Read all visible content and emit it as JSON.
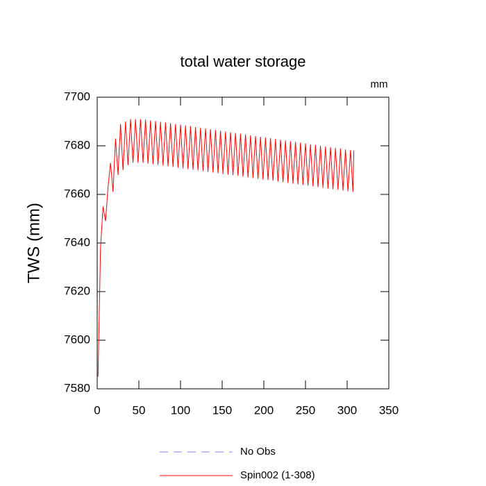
{
  "chart_data": {
    "type": "line",
    "title": "total water storage",
    "units": "mm",
    "y_label": "TWS  (mm)",
    "xlim": [
      0,
      350
    ],
    "xticks": [
      0,
      50,
      100,
      150,
      200,
      250,
      300,
      350
    ],
    "ylim": [
      7580,
      7700
    ],
    "yticks": [
      7580,
      7600,
      7620,
      7640,
      7660,
      7680,
      7700
    ],
    "series": [
      {
        "name": "No Obs",
        "color": "#8080ff",
        "dashed": true,
        "x": [],
        "values": []
      },
      {
        "name": "Spin002 (1-308)",
        "color": "#ff0000",
        "dashed": false,
        "x": [
          1,
          4,
          7,
          10,
          13,
          16,
          19,
          22,
          25,
          28,
          31,
          34,
          37,
          40,
          43,
          46,
          49,
          52,
          55,
          58,
          61,
          64,
          67,
          70,
          73,
          76,
          79,
          82,
          85,
          88,
          91,
          94,
          97,
          100,
          103,
          106,
          109,
          112,
          115,
          118,
          121,
          124,
          127,
          130,
          133,
          136,
          139,
          142,
          145,
          148,
          151,
          154,
          157,
          160,
          163,
          166,
          169,
          172,
          175,
          178,
          181,
          184,
          187,
          190,
          193,
          196,
          199,
          202,
          205,
          208,
          211,
          214,
          217,
          220,
          223,
          226,
          229,
          232,
          235,
          238,
          241,
          244,
          247,
          250,
          253,
          256,
          259,
          262,
          265,
          268,
          271,
          274,
          277,
          280,
          283,
          286,
          289,
          292,
          295,
          298,
          301,
          304,
          307,
          308
        ],
        "values": [
          7585,
          7638,
          7655,
          7649,
          7663,
          7673,
          7661,
          7683,
          7668,
          7689,
          7670,
          7690,
          7672,
          7691,
          7673,
          7691,
          7673,
          7691,
          7673,
          7690.8,
          7672.7,
          7690.5,
          7672.4,
          7690.2,
          7672.1,
          7689.9,
          7671.9,
          7689.6,
          7671.6,
          7689.3,
          7671.3,
          7689.0,
          7671.0,
          7688.7,
          7670.7,
          7688.4,
          7670.4,
          7688.1,
          7670.1,
          7687.7,
          7669.9,
          7687.4,
          7669.6,
          7687.1,
          7669.3,
          7686.8,
          7669.0,
          7686.5,
          7668.7,
          7686.2,
          7668.4,
          7685.9,
          7668.1,
          7685.6,
          7667.9,
          7685.3,
          7667.6,
          7685.0,
          7667.3,
          7684.7,
          7667.0,
          7684.3,
          7666.7,
          7684.0,
          7666.4,
          7683.7,
          7666.1,
          7683.4,
          7665.9,
          7683.1,
          7665.6,
          7682.8,
          7665.3,
          7682.5,
          7665.0,
          7682.2,
          7664.7,
          7681.9,
          7664.4,
          7681.6,
          7664.1,
          7681.3,
          7663.9,
          7681.0,
          7663.6,
          7680.6,
          7663.3,
          7680.3,
          7663.0,
          7680.0,
          7662.7,
          7679.7,
          7662.4,
          7679.4,
          7662.1,
          7679.1,
          7661.9,
          7678.8,
          7661.6,
          7678.5,
          7661.3,
          7678.2,
          7661.0,
          7678
        ]
      }
    ]
  }
}
